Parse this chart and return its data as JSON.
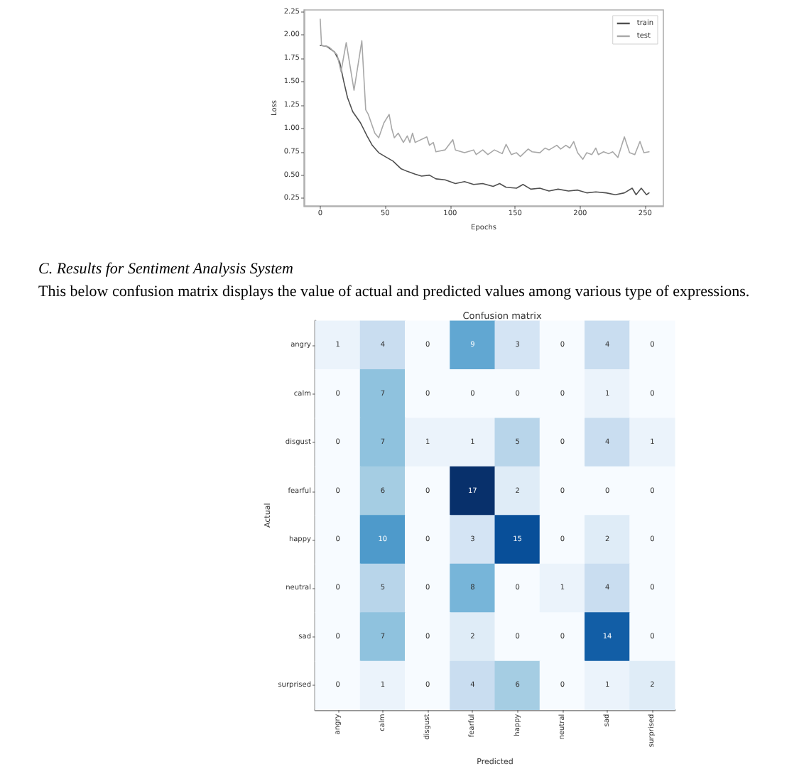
{
  "chart_data": [
    {
      "type": "line",
      "xlabel": "Epochs",
      "ylabel": "Loss",
      "series": [
        {
          "name": "train",
          "color": "#505050",
          "x": [
            0,
            5,
            11,
            15,
            18,
            21,
            25,
            31,
            36,
            40,
            45,
            51,
            56,
            62,
            67,
            73,
            78,
            84,
            89,
            96,
            104,
            111,
            118,
            125,
            133,
            138,
            143,
            151,
            156,
            162,
            169,
            176,
            183,
            191,
            198,
            205,
            212,
            220,
            227,
            234,
            240,
            243,
            247,
            251,
            253
          ],
          "values": [
            1.89,
            1.88,
            1.82,
            1.71,
            1.51,
            1.33,
            1.18,
            1.06,
            0.92,
            0.82,
            0.74,
            0.69,
            0.65,
            0.57,
            0.54,
            0.51,
            0.49,
            0.5,
            0.46,
            0.45,
            0.41,
            0.43,
            0.4,
            0.41,
            0.38,
            0.41,
            0.37,
            0.36,
            0.4,
            0.35,
            0.36,
            0.33,
            0.35,
            0.33,
            0.34,
            0.31,
            0.32,
            0.31,
            0.29,
            0.31,
            0.36,
            0.29,
            0.36,
            0.29,
            0.31
          ]
        },
        {
          "name": "test",
          "color": "#a8a8a8",
          "x": [
            0,
            1,
            7,
            13,
            16,
            20,
            26,
            32,
            35,
            37,
            42,
            45,
            49,
            53,
            55,
            57,
            60,
            64,
            67,
            69,
            71,
            73,
            82,
            84,
            87,
            89,
            96,
            102,
            104,
            111,
            118,
            120,
            125,
            129,
            134,
            140,
            143,
            147,
            151,
            154,
            160,
            163,
            169,
            173,
            176,
            182,
            185,
            189,
            192,
            195,
            198,
            202,
            205,
            209,
            212,
            214,
            218,
            222,
            225,
            229,
            234,
            238,
            242,
            246,
            249,
            253
          ],
          "values": [
            2.17,
            1.89,
            1.87,
            1.79,
            1.61,
            1.92,
            1.41,
            1.94,
            1.2,
            1.15,
            0.95,
            0.9,
            1.06,
            1.15,
            1.0,
            0.9,
            0.95,
            0.85,
            0.92,
            0.85,
            0.95,
            0.85,
            0.91,
            0.82,
            0.85,
            0.75,
            0.77,
            0.88,
            0.77,
            0.74,
            0.77,
            0.72,
            0.77,
            0.72,
            0.77,
            0.73,
            0.83,
            0.72,
            0.74,
            0.7,
            0.78,
            0.75,
            0.74,
            0.79,
            0.77,
            0.82,
            0.78,
            0.82,
            0.79,
            0.86,
            0.74,
            0.67,
            0.74,
            0.72,
            0.79,
            0.72,
            0.75,
            0.73,
            0.75,
            0.69,
            0.91,
            0.74,
            0.72,
            0.86,
            0.74,
            0.75
          ]
        }
      ],
      "xlim": [
        -12.5,
        264
      ],
      "xticks": [
        0,
        50,
        100,
        150,
        200,
        250
      ],
      "ylim": [
        0.17,
        2.27
      ],
      "yticks": [
        0.25,
        {
          "value": 0.5,
          "label": "0.50"
        },
        0.75,
        {
          "value": 1,
          "label": "1.00"
        },
        1.25,
        {
          "value": 1.5,
          "label": "1.50"
        },
        1.75,
        {
          "value": 2,
          "label": "2.00"
        },
        2.25
      ],
      "legend": "top right",
      "grid": false,
      "marker": "none"
    },
    {
      "type": "heatmap",
      "title": "Confusion matrix",
      "xlabel": "Predicted",
      "ylabel": "Actual",
      "categories": [
        "angry",
        "calm",
        "disgust",
        "fearful",
        "happy",
        "neutral",
        "sad",
        "surprised"
      ],
      "y_categories": [
        "angry",
        "calm",
        "disgust",
        "fearful",
        "happy",
        "neutral",
        "sad",
        "surprised"
      ],
      "cells": [
        [
          1,
          4,
          0,
          9,
          3,
          0,
          4,
          0
        ],
        [
          0,
          7,
          0,
          0,
          0,
          0,
          1,
          0
        ],
        [
          0,
          7,
          1,
          1,
          5,
          0,
          4,
          1
        ],
        [
          0,
          6,
          0,
          17,
          2,
          0,
          0,
          0
        ],
        [
          0,
          10,
          0,
          3,
          15,
          0,
          2,
          0
        ],
        [
          0,
          5,
          0,
          8,
          0,
          1,
          4,
          0
        ],
        [
          0,
          7,
          0,
          2,
          0,
          0,
          14,
          0
        ],
        [
          0,
          1,
          0,
          4,
          6,
          0,
          1,
          2
        ]
      ],
      "data_labels": true,
      "annotations": [
        "C. Results for Sentiment Analysis System",
        "This below confusion matrix displays the value of actual and predicted values among various type of expressions."
      ]
    }
  ]
}
